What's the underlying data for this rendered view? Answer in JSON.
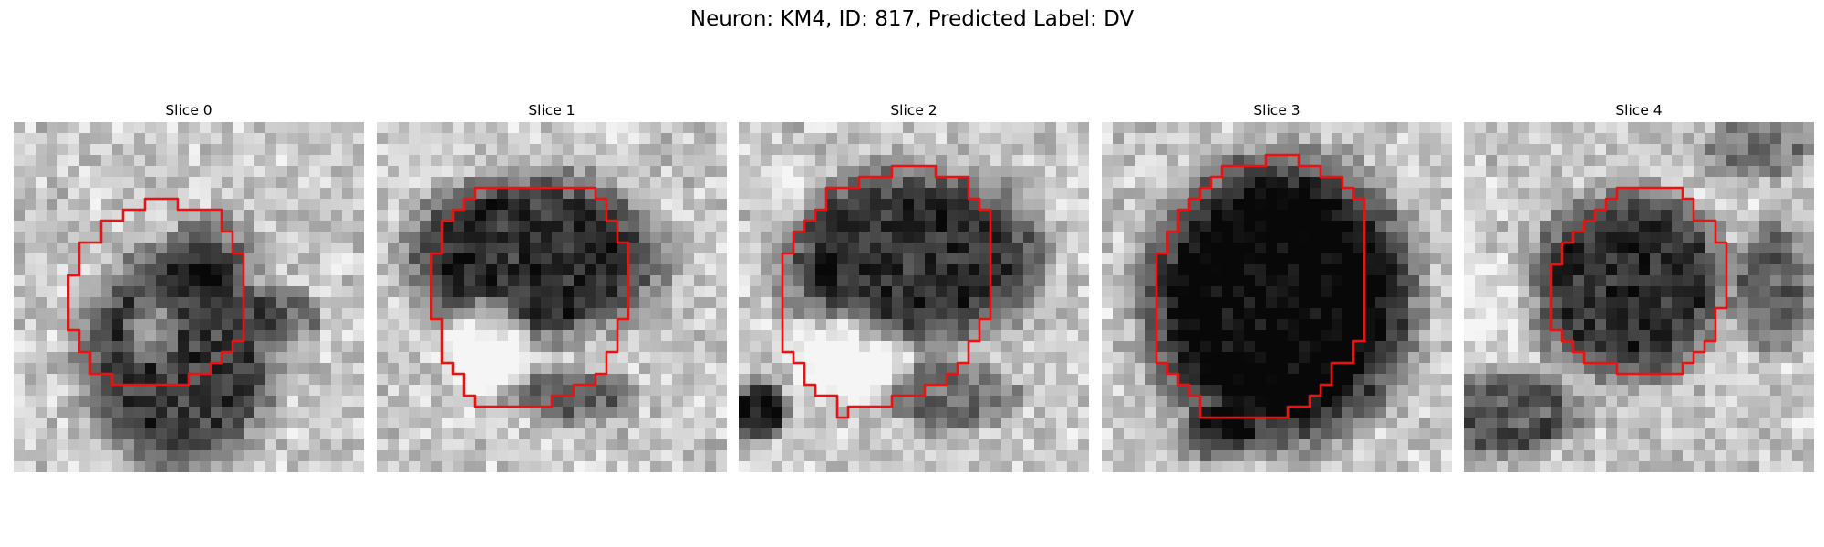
{
  "figure": {
    "title": "Neuron: KM4, ID: 817, Predicted Label: DV"
  },
  "panels": [
    {
      "title": "Slice 0"
    },
    {
      "title": "Slice 1"
    },
    {
      "title": "Slice 2"
    },
    {
      "title": "Slice 3"
    },
    {
      "title": "Slice 4"
    }
  ],
  "colors": {
    "contour": "#ee1111",
    "background": "#ffffff"
  }
}
